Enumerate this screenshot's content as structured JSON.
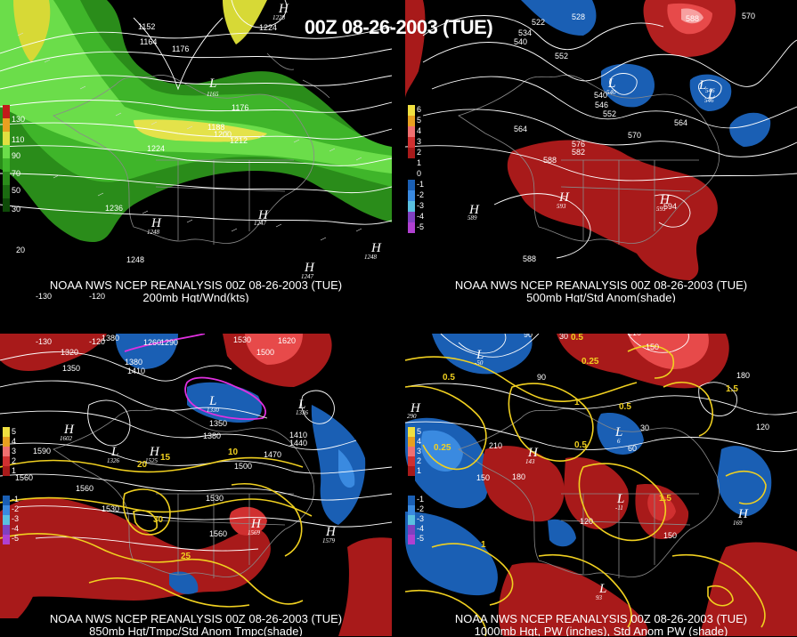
{
  "main_title": "00Z 08-26-2003 (TUE)",
  "panels": [
    {
      "footer_line1": "NOAA NWS NCEP REANALYSIS 00Z 08-26-2003 (TUE)",
      "footer_line2": "200mb Hgt/Wnd(kts)",
      "colorbar": [
        "130",
        "110",
        "90",
        "70",
        "50",
        "30"
      ],
      "contour_labels": [
        "1152",
        "1164",
        "1176",
        "1188",
        "1200",
        "1212",
        "1224",
        "1236",
        "1248",
        "1176",
        "1224",
        "1228"
      ],
      "highs_lows": [
        {
          "t": "L",
          "v": "1165"
        },
        {
          "t": "H",
          "v": "1248"
        },
        {
          "t": "H",
          "v": "1247"
        },
        {
          "t": "H",
          "v": "1248"
        },
        {
          "t": "H",
          "v": "1247"
        },
        {
          "t": "H",
          "v": "1228"
        }
      ],
      "axis_labels": [
        "-130",
        "-120",
        "20"
      ]
    },
    {
      "footer_line1": "NOAA NWS NCEP REANALYSIS 00Z 08-26-2003 (TUE)",
      "footer_line2": "500mb Hgt/Std Anom(shade)",
      "colorbar": [
        "6",
        "5",
        "4",
        "3",
        "2",
        "1",
        "0",
        "-1",
        "-2",
        "-3",
        "-4",
        "-5"
      ],
      "contour_labels": [
        "522",
        "528",
        "534",
        "540",
        "552",
        "588",
        "570",
        "540",
        "546",
        "552",
        "564",
        "564",
        "576",
        "582",
        "570",
        "588",
        "594",
        "588"
      ],
      "highs_lows": [
        {
          "t": "L",
          "v": "540"
        },
        {
          "t": "L",
          "v": "546"
        },
        {
          "t": "L",
          "v": "546"
        },
        {
          "t": "H",
          "v": "589"
        },
        {
          "t": "H",
          "v": "593"
        },
        {
          "t": "H",
          "v": "595"
        }
      ]
    },
    {
      "footer_line1": "NOAA NWS NCEP REANALYSIS 00Z 08-26-2003 (TUE)",
      "footer_line2": "850mb Hgt/Tmpc/Std Anom Tmpc(shade)",
      "colorbar": [
        "5",
        "4",
        "3",
        "2",
        "1",
        "-1",
        "-2",
        "-3",
        "-4",
        "-5"
      ],
      "contour_labels": [
        "1380",
        "1260",
        "1290",
        "1320",
        "1350",
        "1380",
        "1410",
        "1530",
        "1620",
        "1500",
        "1350",
        "1380",
        "1410",
        "1440",
        "1470",
        "1500",
        "1530",
        "1560",
        "1590",
        "1560",
        "1530",
        "1560",
        "10",
        "15",
        "20",
        "25",
        "30"
      ],
      "highs_lows": [
        {
          "t": "L",
          "v": "1330"
        },
        {
          "t": "L",
          "v": "1336"
        },
        {
          "t": "H",
          "v": "1602"
        },
        {
          "t": "L",
          "v": "1326"
        },
        {
          "t": "H",
          "v": "1525"
        },
        {
          "t": "H",
          "v": "1569"
        },
        {
          "t": "H",
          "v": "1579"
        }
      ],
      "axis_labels": [
        "-130",
        "-120"
      ]
    },
    {
      "footer_line1": "NOAA NWS NCEP REANALYSIS 00Z 08-26-2003 (TUE)",
      "footer_line2": "1000mb Hgt, PW (inches), Std Anom PW (shade)",
      "colorbar": [
        "5",
        "4",
        "3",
        "2",
        "1",
        "-1",
        "-2",
        "-3",
        "-4",
        "-5"
      ],
      "contour_labels": [
        "90",
        "30",
        "0.5",
        "210",
        "150",
        "0.25",
        "0.5",
        "1",
        "1.5",
        "0.5",
        "210",
        "180",
        "150",
        "120",
        "90",
        "60",
        "30",
        "0.25",
        "0.5",
        "1",
        "1.5",
        "120",
        "150",
        "180"
      ],
      "highs_lows": [
        {
          "t": "L",
          "v": "-50"
        },
        {
          "t": "H",
          "v": "290"
        },
        {
          "t": "H",
          "v": "143"
        },
        {
          "t": "L",
          "v": "6"
        },
        {
          "t": "L",
          "v": "-11"
        },
        {
          "t": "H",
          "v": "169"
        },
        {
          "t": "L",
          "v": "93"
        }
      ]
    }
  ]
}
